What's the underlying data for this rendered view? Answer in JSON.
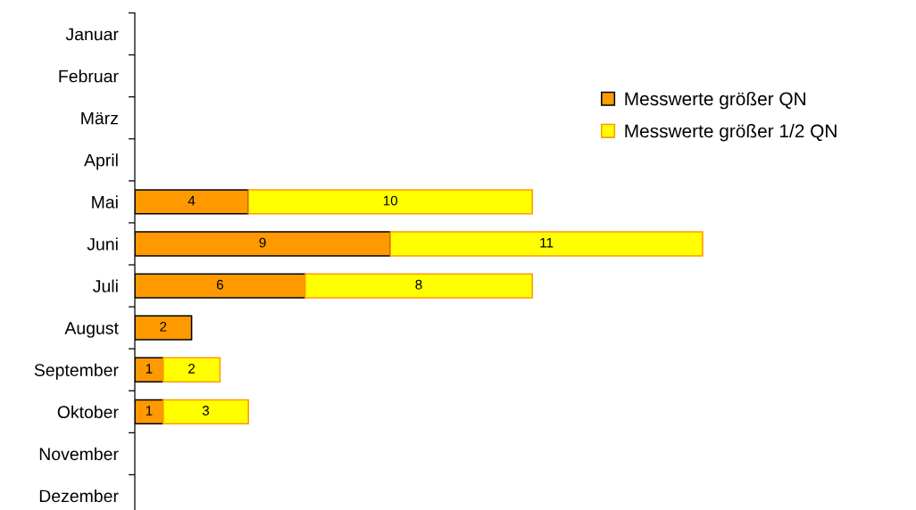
{
  "chart_data": {
    "type": "bar",
    "orientation": "horizontal",
    "stacked": true,
    "data_labels": true,
    "legend": "top right",
    "tick_labels": "y",
    "categories": [
      "Januar",
      "Februar",
      "März",
      "April",
      "Mai",
      "Juni",
      "Juli",
      "August",
      "September",
      "Oktober",
      "November",
      "Dezember"
    ],
    "series": [
      {
        "name": "Messwerte größer QN",
        "color": "#ff9900",
        "values": [
          null,
          null,
          null,
          null,
          4,
          9,
          6,
          2,
          1,
          1,
          null,
          null
        ]
      },
      {
        "name": "Messwerte größer 1/2 QN",
        "color": "#ffff00",
        "values": [
          null,
          null,
          null,
          null,
          10,
          11,
          8,
          null,
          2,
          3,
          null,
          null
        ]
      }
    ]
  }
}
